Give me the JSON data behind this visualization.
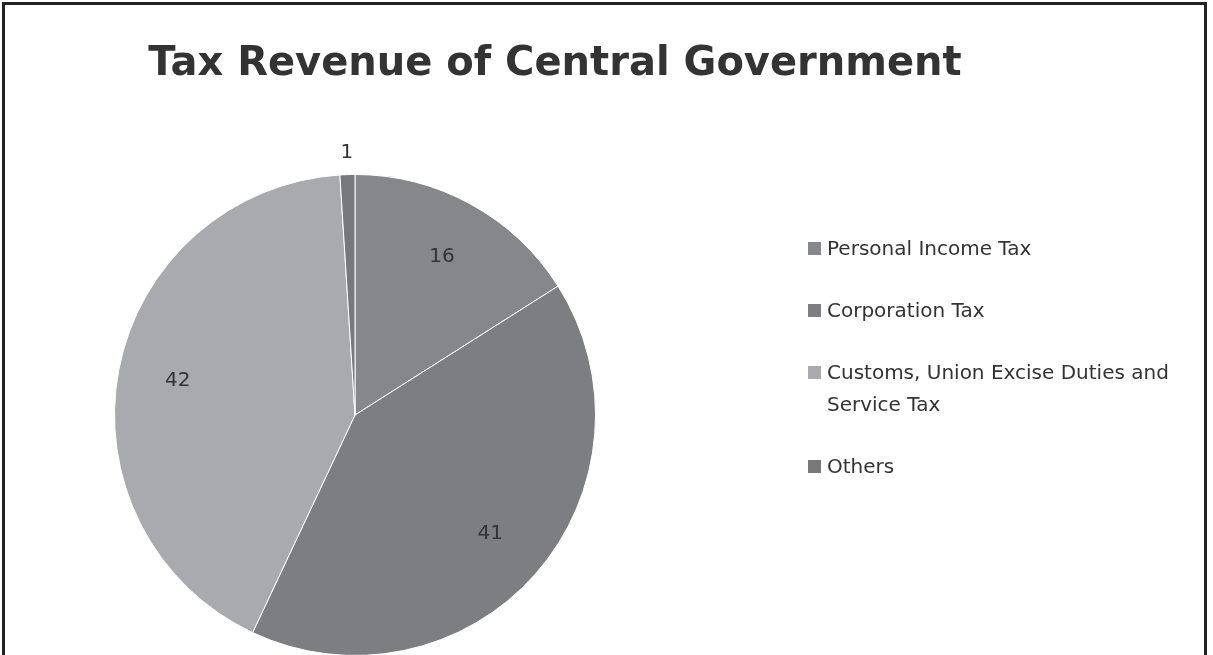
{
  "chart_data": {
    "type": "pie",
    "title": "Tax Revenue of Central Government",
    "categories": [
      "Personal Income Tax",
      "Corporation Tax",
      "Customs, Union Excise Duties and Service Tax",
      "Others"
    ],
    "values": [
      16,
      41,
      42,
      1
    ],
    "colors": [
      "#86878b",
      "#7d7e82",
      "#a9aaad",
      "#77787c"
    ],
    "data_labels": true,
    "legend": "right"
  }
}
